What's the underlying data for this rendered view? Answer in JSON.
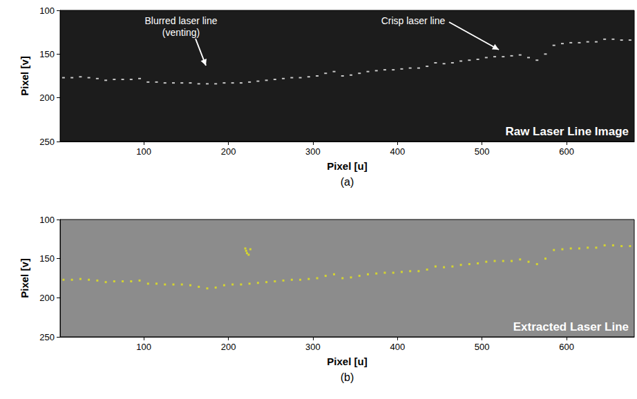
{
  "chart_data": [
    {
      "type": "scatter",
      "panel": "(a)",
      "title": "Raw Laser Line Image",
      "x_label": "Pixel [u]",
      "y_label": "Pixel [v]",
      "xlim": [
        1,
        680
      ],
      "xticks": [
        100,
        200,
        300,
        400,
        500,
        600
      ],
      "ylim": [
        250,
        100
      ],
      "yticks": [
        100,
        150,
        200,
        250
      ],
      "grid": false,
      "marker": "square",
      "color": "#f4f4f4",
      "annotations": [
        {
          "text": "Blurred laser line\n(venting)"
        },
        {
          "text": "Crisp laser line"
        }
      ],
      "x": [
        5,
        15,
        25,
        35,
        45,
        55,
        65,
        75,
        85,
        95,
        105,
        115,
        125,
        135,
        145,
        155,
        165,
        175,
        185,
        195,
        205,
        215,
        225,
        235,
        245,
        255,
        265,
        275,
        285,
        295,
        305,
        315,
        325,
        335,
        345,
        355,
        365,
        375,
        385,
        395,
        405,
        415,
        425,
        435,
        445,
        455,
        465,
        475,
        485,
        495,
        505,
        515,
        525,
        535,
        545,
        555,
        565,
        575,
        585,
        595,
        605,
        615,
        625,
        635,
        645,
        655,
        665,
        675
      ],
      "values": [
        177,
        177,
        176,
        177,
        178,
        180,
        179,
        179,
        179,
        178,
        182,
        182,
        183,
        183,
        183,
        183,
        184,
        184,
        184,
        183,
        183,
        183,
        182,
        181,
        180,
        179,
        178,
        177,
        177,
        176,
        175,
        172,
        170,
        175,
        174,
        172,
        170,
        169,
        168,
        168,
        167,
        166,
        166,
        164,
        160,
        161,
        160,
        158,
        157,
        156,
        154,
        153,
        153,
        152,
        151,
        154,
        157,
        150,
        140,
        138,
        137,
        137,
        136,
        136,
        133,
        133,
        134,
        134
      ]
    },
    {
      "type": "scatter",
      "panel": "(b)",
      "title": "Extracted Laser Line",
      "x_label": "Pixel [u]",
      "y_label": "Pixel [v]",
      "xlim": [
        1,
        680
      ],
      "xticks": [
        100,
        200,
        300,
        400,
        500,
        600
      ],
      "ylim": [
        250,
        100
      ],
      "yticks": [
        100,
        150,
        200,
        250
      ],
      "grid": false,
      "marker": "square",
      "color": "#e6e619",
      "x": [
        5,
        15,
        25,
        35,
        45,
        55,
        65,
        75,
        85,
        95,
        105,
        115,
        125,
        135,
        145,
        155,
        165,
        175,
        185,
        195,
        205,
        215,
        225,
        235,
        245,
        255,
        265,
        275,
        285,
        295,
        305,
        315,
        325,
        335,
        345,
        355,
        365,
        375,
        385,
        395,
        405,
        415,
        425,
        435,
        445,
        455,
        465,
        475,
        485,
        495,
        505,
        515,
        525,
        535,
        545,
        555,
        565,
        575,
        585,
        595,
        605,
        615,
        625,
        635,
        645,
        655,
        665,
        675,
        220,
        221,
        222,
        224,
        226
      ],
      "values": [
        177,
        177,
        176,
        177,
        178,
        180,
        179,
        179,
        179,
        178,
        182,
        182,
        183,
        183,
        183,
        184,
        186,
        188,
        187,
        184,
        183,
        183,
        182,
        181,
        180,
        179,
        178,
        177,
        177,
        176,
        175,
        172,
        170,
        175,
        174,
        172,
        170,
        169,
        168,
        168,
        167,
        166,
        166,
        164,
        160,
        161,
        160,
        158,
        157,
        156,
        154,
        153,
        153,
        153,
        151,
        154,
        157,
        150,
        139,
        138,
        137,
        137,
        136,
        136,
        133,
        133,
        134,
        134,
        137,
        140,
        143,
        145,
        138
      ]
    }
  ]
}
